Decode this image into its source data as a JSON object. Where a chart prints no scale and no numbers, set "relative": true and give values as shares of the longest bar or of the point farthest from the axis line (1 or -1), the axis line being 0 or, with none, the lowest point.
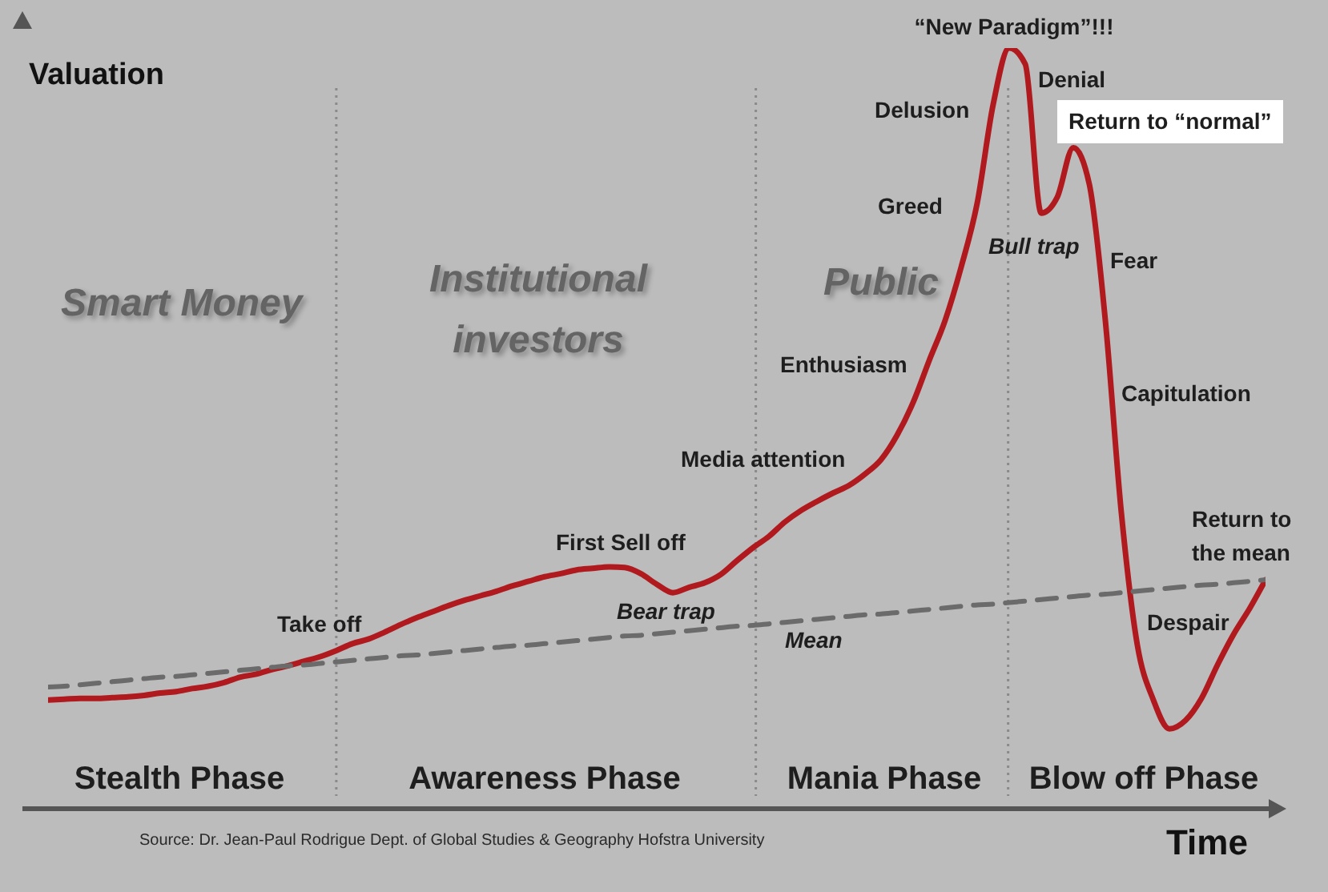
{
  "chart_data": {
    "type": "line",
    "relative": true,
    "xlabel": "Time",
    "ylabel": "Valuation",
    "grid": "x",
    "categories": [
      null,
      null,
      null,
      null,
      null,
      null,
      null,
      null,
      null,
      null,
      null,
      null,
      null,
      null,
      null,
      null,
      null,
      null,
      null,
      null,
      null,
      null,
      null,
      null,
      null,
      null,
      null,
      null,
      null,
      null,
      null,
      null,
      null,
      null,
      null,
      null,
      null,
      null,
      null,
      null,
      null,
      null,
      null,
      null,
      null,
      null,
      null,
      null,
      null,
      null,
      null,
      null,
      null,
      null,
      null,
      null,
      null,
      null,
      null,
      null,
      null,
      null,
      null,
      null,
      null,
      null,
      null,
      null,
      null,
      null,
      null,
      null,
      null,
      null,
      null,
      null,
      null
    ],
    "series": [
      {
        "color": "#b0191e",
        "line_style": "solid",
        "values": [
          0.143,
          0.144,
          0.145,
          0.145,
          0.146,
          0.147,
          0.149,
          0.152,
          0.154,
          0.158,
          0.161,
          0.166,
          0.173,
          0.177,
          0.183,
          0.188,
          0.194,
          0.2,
          0.208,
          0.217,
          0.223,
          0.232,
          0.242,
          0.251,
          0.259,
          0.267,
          0.274,
          0.28,
          0.286,
          0.293,
          0.299,
          0.305,
          0.309,
          0.314,
          0.316,
          0.318,
          0.317,
          0.309,
          0.295,
          0.284,
          0.291,
          0.297,
          0.308,
          0.326,
          0.343,
          0.358,
          0.377,
          0.392,
          0.404,
          0.415,
          0.425,
          0.44,
          0.459,
          0.491,
          0.534,
          0.589,
          0.642,
          0.712,
          0.796,
          0.926,
          1.0,
          0.979,
          0.783,
          0.804,
          0.869,
          0.821,
          0.642,
          0.389,
          0.215,
          0.143,
          0.105,
          0.116,
          0.145,
          0.189,
          0.229,
          0.263,
          0.301
        ]
      },
      {
        "name": "Mean",
        "color": "#6b6b6b",
        "line_style": "dashed",
        "values": [
          0.16,
          0.161,
          0.163,
          0.165,
          0.167,
          0.169,
          0.171,
          0.173,
          0.174,
          0.176,
          0.178,
          0.18,
          0.182,
          0.184,
          0.186,
          0.188,
          0.189,
          0.191,
          0.193,
          0.195,
          0.197,
          0.199,
          0.201,
          0.202,
          0.204,
          0.206,
          0.208,
          0.21,
          0.212,
          0.214,
          0.215,
          0.217,
          0.219,
          0.221,
          0.223,
          0.225,
          0.227,
          0.228,
          0.23,
          0.232,
          0.234,
          0.236,
          0.238,
          0.24,
          0.241,
          0.243,
          0.245,
          0.247,
          0.249,
          0.251,
          0.253,
          0.255,
          0.256,
          0.258,
          0.26,
          0.262,
          0.264,
          0.266,
          0.268,
          0.269,
          0.271,
          0.273,
          0.275,
          0.277,
          0.279,
          0.281,
          0.282,
          0.284,
          0.286,
          0.288,
          0.29,
          0.292,
          0.294,
          0.295,
          0.297,
          0.299,
          0.301
        ]
      }
    ],
    "annotations": [
      "Take off",
      "First Sell off",
      "Bear trap",
      "Media attention",
      "Enthusiasm",
      "Greed",
      "Delusion",
      "“New Paradigm”!!!",
      "Denial",
      "Return to “normal”",
      "Bull trap",
      "Fear",
      "Capitulation",
      "Despair",
      "Return to the mean",
      "Smart Money",
      "Institutional investors",
      "Public",
      "Stealth Phase",
      "Awareness Phase",
      "Mania Phase",
      "Blow off Phase",
      "Source: Dr. Jean-Paul Rodrigue Dept. of Global Studies & Geography Hofstra University"
    ]
  }
}
